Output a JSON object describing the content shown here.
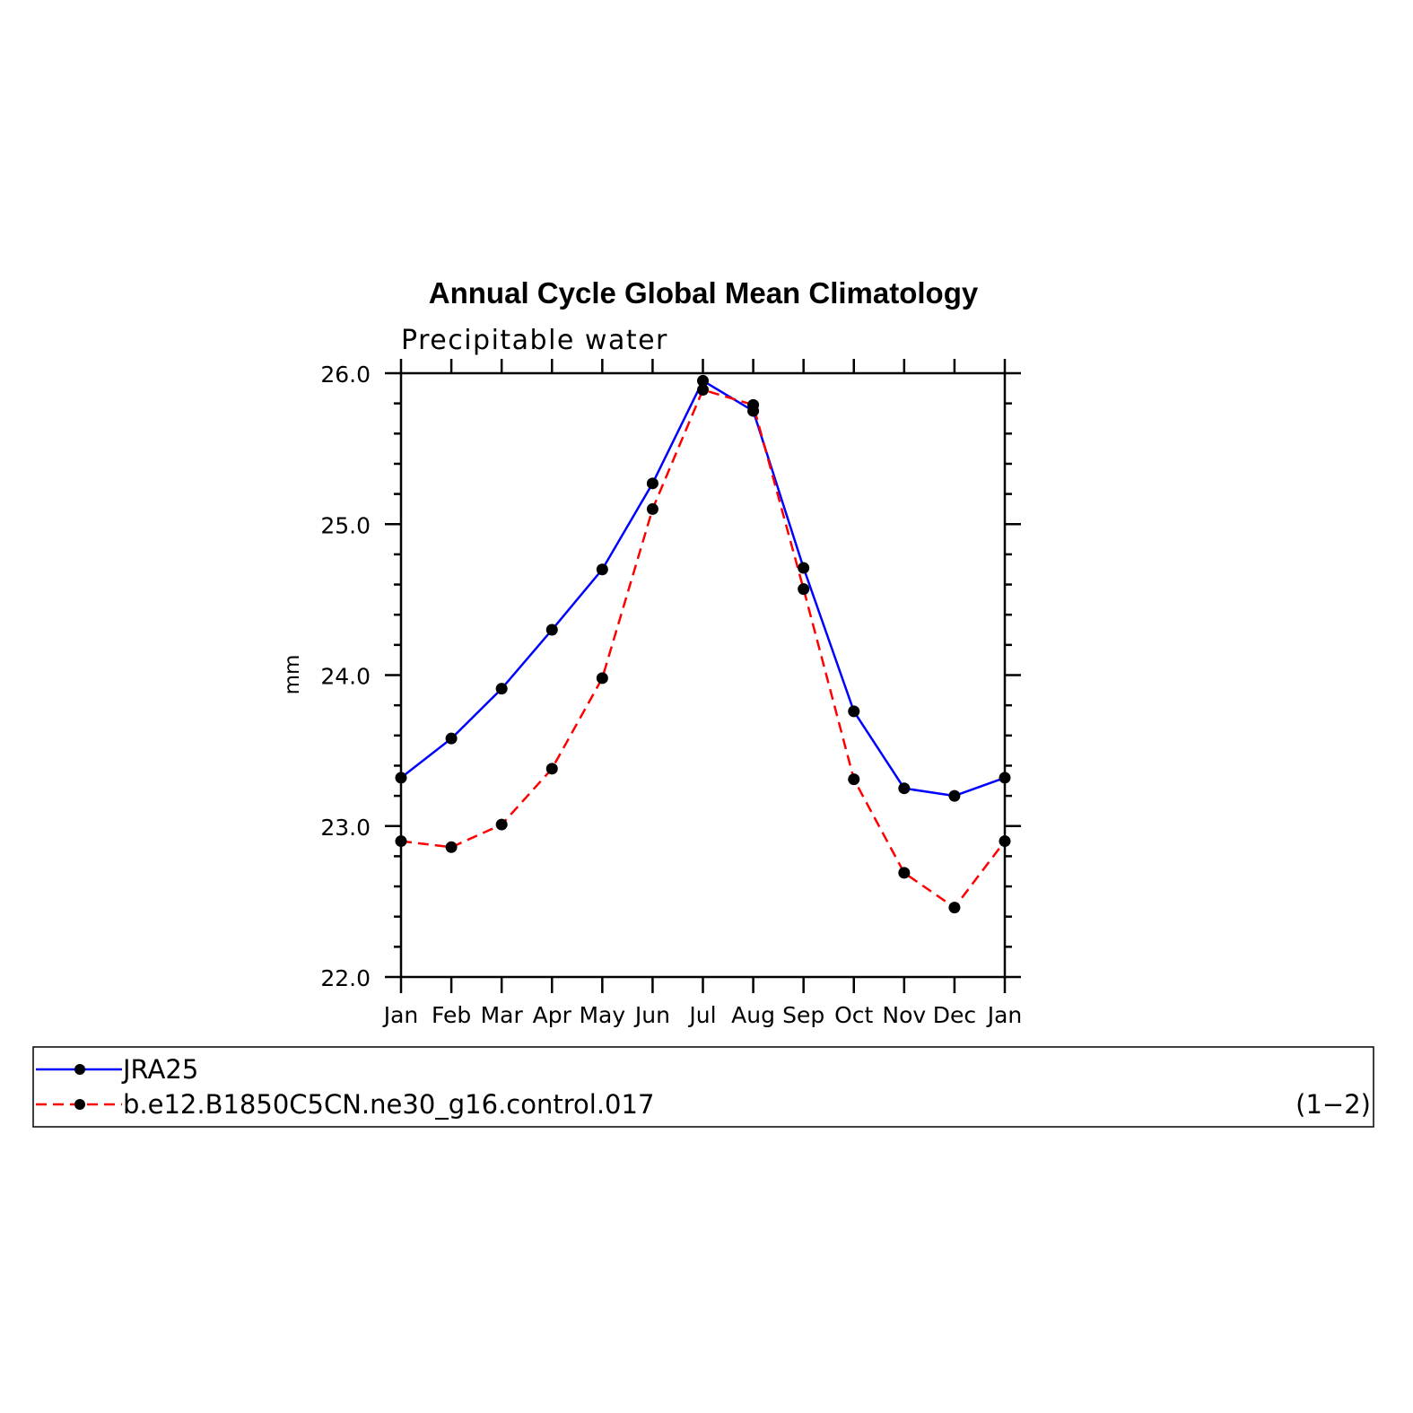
{
  "chart_data": {
    "type": "line",
    "title": "Annual Cycle Global Mean Climatology",
    "subtitle": "Precipitable water",
    "ylabel": "mm",
    "xlabel": "",
    "categories": [
      "Jan",
      "Feb",
      "Mar",
      "Apr",
      "May",
      "Jun",
      "Jul",
      "Aug",
      "Sep",
      "Oct",
      "Nov",
      "Dec",
      "Jan"
    ],
    "ylim": [
      22.0,
      26.0
    ],
    "yticks": [
      "22.0",
      "23.0",
      "24.0",
      "25.0",
      "26.0"
    ],
    "grid": false,
    "legend_position": "bottom",
    "series": [
      {
        "name": "JRA25",
        "color": "#0000ff",
        "dashed": false,
        "values": [
          23.32,
          23.58,
          23.91,
          24.3,
          24.7,
          25.27,
          25.95,
          25.75,
          24.71,
          23.76,
          23.25,
          23.2,
          23.32
        ]
      },
      {
        "name": "b.e12.B1850C5CN.ne30_g16.control.017",
        "color": "#ff0000",
        "dashed": true,
        "values": [
          22.9,
          22.86,
          23.01,
          23.38,
          23.98,
          25.1,
          25.89,
          25.79,
          24.57,
          23.31,
          22.69,
          22.46,
          22.9
        ]
      }
    ],
    "legend_tag": "(1−2)"
  }
}
